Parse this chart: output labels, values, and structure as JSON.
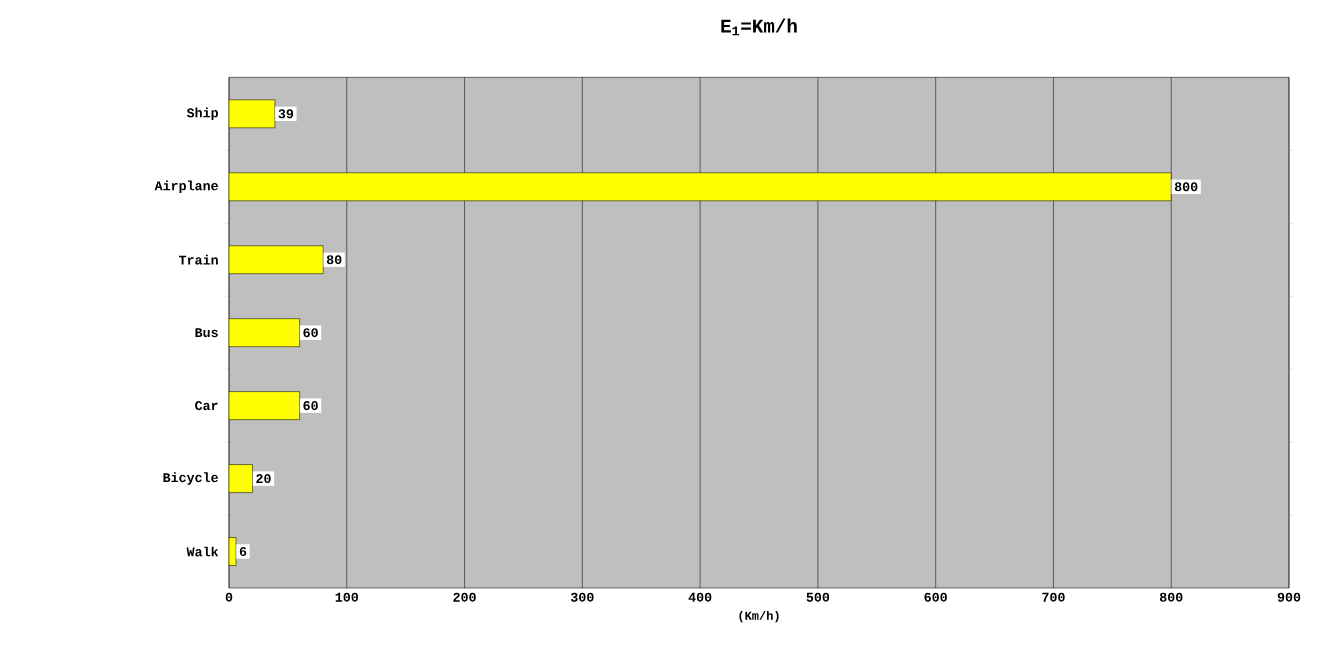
{
  "chart_data": {
    "type": "bar",
    "orientation": "horizontal",
    "title": "E$_{1}$=Km/h",
    "xlabel": "(Km/h)",
    "categories": [
      "Ship",
      "Airplane",
      "Train",
      "Bus",
      "Car",
      "Bicycle",
      "Walk"
    ],
    "values": [
      39,
      800,
      80,
      60,
      60,
      20,
      6
    ],
    "color": "#ffff00",
    "xlim": [
      0,
      900
    ],
    "xticks": [
      0,
      100,
      200,
      300,
      400,
      500,
      600,
      700,
      800,
      900
    ],
    "grid": "x",
    "data_labels": true
  }
}
